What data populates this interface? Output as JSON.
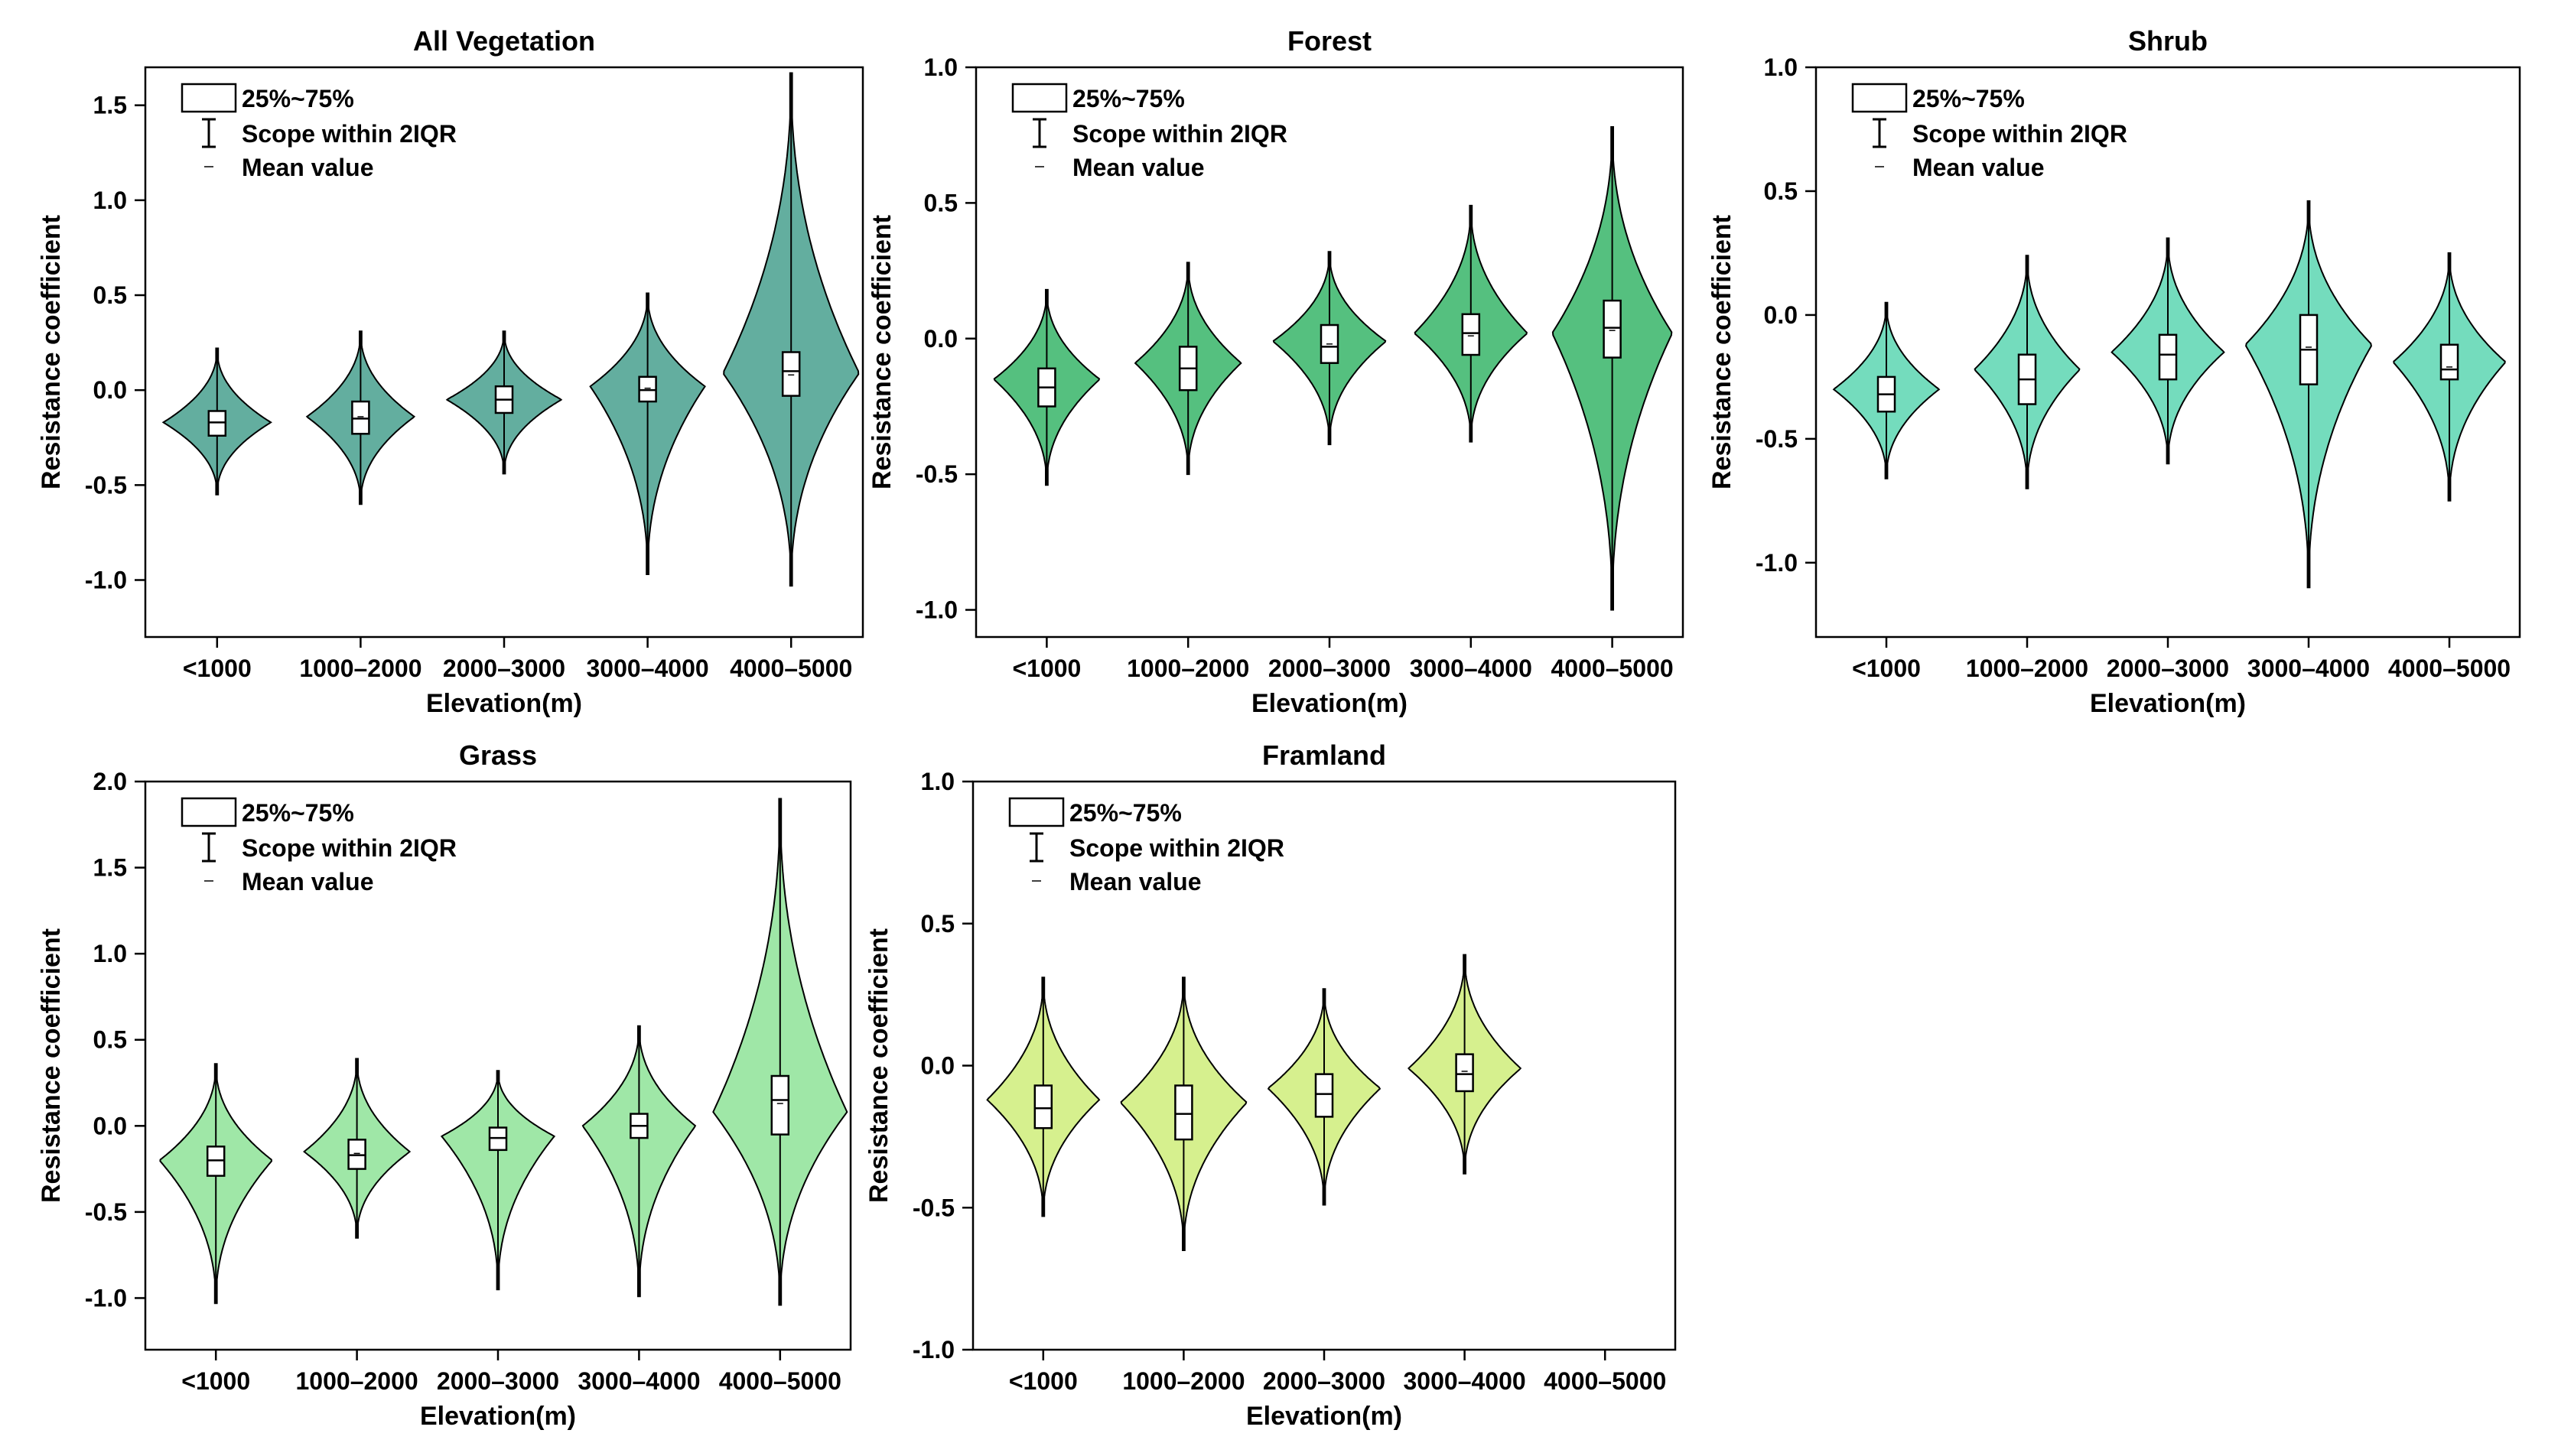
{
  "figure": {
    "panel_count": 5
  },
  "legend": {
    "box_label": "25%~75%",
    "whisker_label": "Scope within 2IQR",
    "mean_label": "Mean value"
  },
  "chart_data": [
    {
      "type": "violin",
      "title": "All Vegetation",
      "xlabel": "Elevation(m)",
      "ylabel": "Resistance coefficient",
      "categories": [
        "<1000",
        "1000–2000",
        "2000–3000",
        "3000–4000",
        "4000–5000"
      ],
      "ylim": [
        -1.3,
        1.7
      ],
      "yticks": [
        -1.0,
        -0.5,
        0.0,
        0.5,
        1.0,
        1.5
      ],
      "ytick_labels": [
        "-1.0",
        "-0.5",
        "0.0",
        "0.5",
        "1.0",
        "1.5"
      ],
      "fill_color": "#63ae9f",
      "violins": [
        {
          "min": -0.55,
          "max": 0.22,
          "q1": -0.24,
          "median": -0.17,
          "q3": -0.11,
          "mean": -0.17,
          "peak": -0.17,
          "width": 0.75
        },
        {
          "min": -0.6,
          "max": 0.31,
          "q1": -0.23,
          "median": -0.15,
          "q3": -0.06,
          "mean": -0.14,
          "peak": -0.14,
          "width": 0.75
        },
        {
          "min": -0.44,
          "max": 0.31,
          "q1": -0.12,
          "median": -0.05,
          "q3": 0.02,
          "mean": -0.05,
          "peak": -0.05,
          "width": 0.8
        },
        {
          "min": -0.97,
          "max": 0.51,
          "q1": -0.06,
          "median": 0.0,
          "q3": 0.07,
          "mean": 0.01,
          "peak": 0.02,
          "width": 0.8
        },
        {
          "min": -1.03,
          "max": 1.67,
          "q1": -0.03,
          "median": 0.1,
          "q3": 0.2,
          "mean": 0.08,
          "peak": 0.09,
          "width": 0.95
        }
      ]
    },
    {
      "type": "violin",
      "title": "Forest",
      "xlabel": "Elevation(m)",
      "ylabel": "Resistance coefficient",
      "categories": [
        "<1000",
        "1000–2000",
        "2000–3000",
        "3000–4000",
        "4000–5000"
      ],
      "ylim": [
        -1.1,
        1.0
      ],
      "yticks": [
        -1.0,
        -0.5,
        0.0,
        0.5,
        1.0
      ],
      "ytick_labels": [
        "-1.0",
        "-0.5",
        "0.0",
        "0.5",
        "1.0"
      ],
      "fill_color": "#55c07f",
      "violins": [
        {
          "min": -0.54,
          "max": 0.18,
          "q1": -0.25,
          "median": -0.18,
          "q3": -0.11,
          "mean": -0.18,
          "peak": -0.15,
          "width": 0.75
        },
        {
          "min": -0.5,
          "max": 0.28,
          "q1": -0.19,
          "median": -0.11,
          "q3": -0.03,
          "mean": -0.11,
          "peak": -0.09,
          "width": 0.75
        },
        {
          "min": -0.39,
          "max": 0.32,
          "q1": -0.09,
          "median": -0.03,
          "q3": 0.05,
          "mean": -0.02,
          "peak": -0.01,
          "width": 0.8
        },
        {
          "min": -0.38,
          "max": 0.49,
          "q1": -0.06,
          "median": 0.02,
          "q3": 0.09,
          "mean": 0.01,
          "peak": 0.02,
          "width": 0.8
        },
        {
          "min": -1.0,
          "max": 0.78,
          "q1": -0.07,
          "median": 0.04,
          "q3": 0.14,
          "mean": 0.03,
          "peak": 0.02,
          "width": 0.85
        }
      ]
    },
    {
      "type": "violin",
      "title": "Shrub",
      "xlabel": "Elevation(m)",
      "ylabel": "Resistance coefficient",
      "categories": [
        "<1000",
        "1000–2000",
        "2000–3000",
        "3000–4000",
        "4000–5000"
      ],
      "ylim": [
        -1.3,
        1.0
      ],
      "yticks": [
        -1.0,
        -0.5,
        0.0,
        0.5,
        1.0
      ],
      "ytick_labels": [
        "-1.0",
        "-0.5",
        "0.0",
        "0.5",
        "1.0"
      ],
      "fill_color": "#74dcbd",
      "violins": [
        {
          "min": -0.66,
          "max": 0.05,
          "q1": -0.39,
          "median": -0.32,
          "q3": -0.25,
          "mean": -0.32,
          "peak": -0.3,
          "width": 0.75
        },
        {
          "min": -0.7,
          "max": 0.24,
          "q1": -0.36,
          "median": -0.26,
          "q3": -0.16,
          "mean": -0.26,
          "peak": -0.22,
          "width": 0.75
        },
        {
          "min": -0.6,
          "max": 0.31,
          "q1": -0.26,
          "median": -0.16,
          "q3": -0.08,
          "mean": -0.16,
          "peak": -0.15,
          "width": 0.8
        },
        {
          "min": -1.1,
          "max": 0.46,
          "q1": -0.28,
          "median": -0.14,
          "q3": 0.0,
          "mean": -0.13,
          "peak": -0.12,
          "width": 0.9
        },
        {
          "min": -0.75,
          "max": 0.25,
          "q1": -0.26,
          "median": -0.22,
          "q3": -0.12,
          "mean": -0.21,
          "peak": -0.19,
          "width": 0.8
        }
      ]
    },
    {
      "type": "violin",
      "title": "Grass",
      "xlabel": "Elevation(m)",
      "ylabel": "Resistance coefficient",
      "categories": [
        "<1000",
        "1000–2000",
        "2000–3000",
        "3000–4000",
        "4000–5000"
      ],
      "ylim": [
        -1.3,
        2.0
      ],
      "yticks": [
        -1.0,
        -0.5,
        0.0,
        0.5,
        1.0,
        1.5,
        2.0
      ],
      "ytick_labels": [
        "-1.0",
        "-0.5",
        "0.0",
        "0.5",
        "1.0",
        "1.5",
        "2.0"
      ],
      "fill_color": "#9fe7a7",
      "violins": [
        {
          "min": -1.03,
          "max": 0.36,
          "q1": -0.29,
          "median": -0.2,
          "q3": -0.12,
          "mean": -0.2,
          "peak": -0.2,
          "width": 0.8
        },
        {
          "min": -0.65,
          "max": 0.39,
          "q1": -0.25,
          "median": -0.17,
          "q3": -0.08,
          "mean": -0.16,
          "peak": -0.15,
          "width": 0.75
        },
        {
          "min": -0.95,
          "max": 0.32,
          "q1": -0.14,
          "median": -0.07,
          "q3": -0.01,
          "mean": -0.07,
          "peak": -0.06,
          "width": 0.8
        },
        {
          "min": -0.99,
          "max": 0.58,
          "q1": -0.07,
          "median": 0.0,
          "q3": 0.07,
          "mean": 0.0,
          "peak": 0.0,
          "width": 0.8
        },
        {
          "min": -1.04,
          "max": 1.9,
          "q1": -0.05,
          "median": 0.15,
          "q3": 0.29,
          "mean": 0.13,
          "peak": 0.08,
          "width": 0.95
        }
      ]
    },
    {
      "type": "violin",
      "title": "Framland",
      "xlabel": "Elevation(m)",
      "ylabel": "Resistance coefficient",
      "categories": [
        "<1000",
        "1000–2000",
        "2000–3000",
        "3000–4000",
        "4000–5000"
      ],
      "ylim": [
        -1.0,
        1.0
      ],
      "yticks": [
        -1.0,
        -0.5,
        0.0,
        0.5,
        1.0
      ],
      "ytick_labels": [
        "-1.0",
        "-0.5",
        "0.0",
        "0.5",
        "1.0"
      ],
      "fill_color": "#d6f08e",
      "violins": [
        {
          "min": -0.53,
          "max": 0.31,
          "q1": -0.22,
          "median": -0.15,
          "q3": -0.07,
          "mean": -0.15,
          "peak": -0.12,
          "width": 0.8
        },
        {
          "min": -0.65,
          "max": 0.31,
          "q1": -0.26,
          "median": -0.17,
          "q3": -0.07,
          "mean": -0.17,
          "peak": -0.13,
          "width": 0.9
        },
        {
          "min": -0.49,
          "max": 0.27,
          "q1": -0.18,
          "median": -0.1,
          "q3": -0.03,
          "mean": -0.1,
          "peak": -0.08,
          "width": 0.8
        },
        {
          "min": -0.38,
          "max": 0.39,
          "q1": -0.09,
          "median": -0.03,
          "q3": 0.04,
          "mean": -0.02,
          "peak": -0.01,
          "width": 0.8
        },
        null
      ]
    }
  ]
}
